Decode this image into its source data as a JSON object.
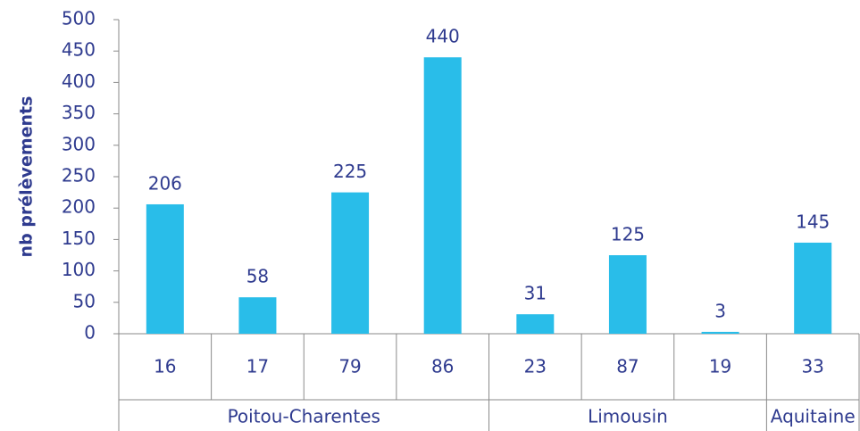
{
  "chart_data": {
    "type": "bar",
    "y_axis_label": "nb prélèvements",
    "groups": [
      {
        "name": "Poitou-Charentes",
        "categories": [
          "16",
          "17",
          "79",
          "86"
        ]
      },
      {
        "name": "Limousin",
        "categories": [
          "23",
          "87",
          "19"
        ]
      },
      {
        "name": "Aquitaine",
        "categories": [
          "33"
        ]
      }
    ],
    "values": [
      206,
      58,
      225,
      440,
      31,
      125,
      3,
      145
    ],
    "color": "#29bde9",
    "ylim": [
      0,
      500
    ],
    "yticks": [
      0,
      50,
      100,
      150,
      200,
      250,
      300,
      350,
      400,
      450,
      500
    ],
    "grid": false
  }
}
